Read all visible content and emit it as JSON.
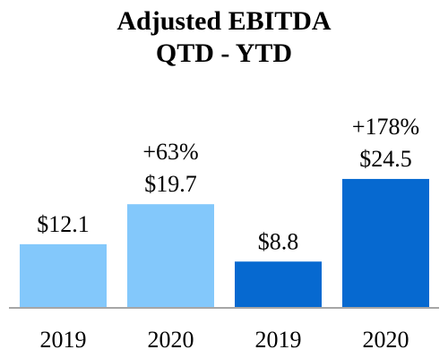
{
  "chart_data": {
    "type": "bar",
    "title": "Adjusted EBITDA",
    "subtitle": "QTD - YTD",
    "categories": [
      "2019",
      "2020",
      "2019",
      "2020"
    ],
    "values": [
      12.1,
      19.7,
      8.8,
      24.5
    ],
    "value_labels": [
      "$12.1",
      "$19.7",
      "$8.8",
      "$24.5"
    ],
    "change_labels": [
      "",
      "+63%",
      "",
      "+178%"
    ],
    "bar_colors": [
      "#83c8fb",
      "#83c8fb",
      "#0669d0",
      "#0669d0"
    ],
    "axis_color": "#a6a6a6",
    "ylim": [
      0,
      30
    ],
    "grid": false,
    "legend": "none"
  }
}
